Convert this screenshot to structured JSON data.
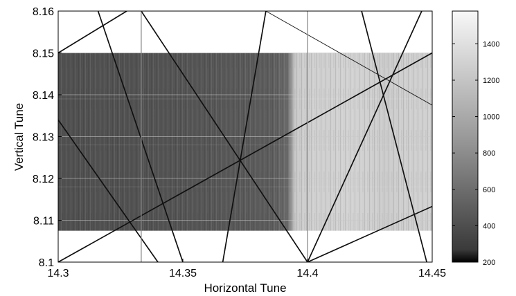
{
  "chart_data": {
    "type": "heatmap",
    "title": "",
    "xlabel": "Horizontal Tune",
    "ylabel": "Vertical Tune",
    "xlim": [
      14.3,
      14.45
    ],
    "ylim": [
      8.1,
      8.16
    ],
    "xticks": [
      14.3,
      14.35,
      14.4,
      14.45
    ],
    "xtick_labels": [
      "14.3",
      "14.35",
      "14.4",
      "14.45"
    ],
    "yticks": [
      8.1,
      8.11,
      8.12,
      8.13,
      8.14,
      8.15,
      8.16
    ],
    "ytick_labels": [
      "8.1",
      "8.11",
      "8.12",
      "8.13",
      "8.14",
      "8.15",
      "8.16"
    ],
    "grid": true,
    "colormap": "gray",
    "colorbar": {
      "range": [
        200,
        1580
      ],
      "ticks": [
        200,
        400,
        600,
        800,
        1000,
        1200,
        1400
      ],
      "tick_labels": [
        "200",
        "400",
        "600",
        "800",
        "1000",
        "1200",
        "1400"
      ]
    },
    "heatmap_extent": {
      "x": [
        14.3,
        14.45
      ],
      "y": [
        8.1075,
        8.15
      ]
    },
    "heatmap_column_profile": {
      "x": [
        14.3,
        14.33,
        14.36,
        14.385,
        14.392,
        14.395,
        14.4,
        14.42,
        14.43,
        14.45
      ],
      "value": [
        520,
        530,
        560,
        600,
        680,
        1280,
        1320,
        1340,
        1300,
        1330
      ]
    },
    "resonance_lines": [
      {
        "kind": "dark",
        "points": [
          [
            14.3,
            8.134
          ],
          [
            14.34,
            8.1
          ]
        ]
      },
      {
        "kind": "dark",
        "points": [
          [
            14.3,
            8.1
          ],
          [
            14.45,
            8.15
          ]
        ]
      },
      {
        "kind": "dark",
        "points": [
          [
            14.3,
            8.15
          ],
          [
            14.3275,
            8.16
          ]
        ]
      },
      {
        "kind": "dark",
        "points": [
          [
            14.3333,
            8.16
          ],
          [
            14.4,
            8.1
          ]
        ]
      },
      {
        "kind": "dark",
        "points": [
          [
            14.316,
            8.16
          ],
          [
            14.35,
            8.1
          ]
        ]
      },
      {
        "kind": "dark",
        "points": [
          [
            14.366,
            8.1
          ],
          [
            14.3833,
            8.16
          ]
        ]
      },
      {
        "kind": "dark",
        "points": [
          [
            14.4,
            8.1
          ],
          [
            14.45,
            8.1133
          ]
        ]
      },
      {
        "kind": "dark",
        "points": [
          [
            14.4,
            8.1
          ],
          [
            14.4458,
            8.16
          ]
        ]
      },
      {
        "kind": "dark",
        "points": [
          [
            14.4217,
            8.16
          ],
          [
            14.4478,
            8.1
          ]
        ]
      },
      {
        "kind": "thin",
        "points": [
          [
            14.3833,
            8.16
          ],
          [
            14.45,
            8.1375
          ]
        ]
      },
      {
        "kind": "gray",
        "points": [
          [
            14.3333,
            8.1
          ],
          [
            14.3333,
            8.16
          ]
        ]
      },
      {
        "kind": "gray",
        "points": [
          [
            14.4,
            8.1
          ],
          [
            14.4,
            8.16
          ]
        ]
      }
    ]
  }
}
